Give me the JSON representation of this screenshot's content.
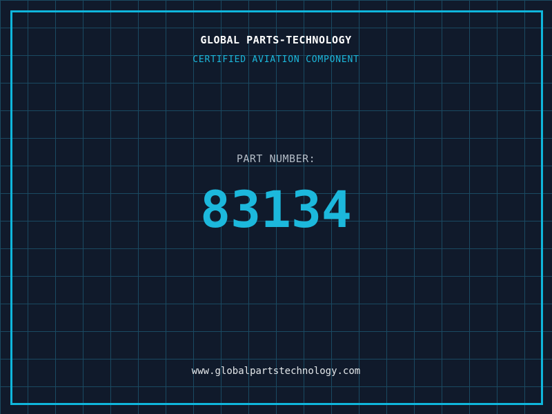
{
  "page": {
    "title": "GLOBAL PARTS-TECHNOLOGY",
    "subtitle": "CERTIFIED AVIATION COMPONENT",
    "part_label": "PART NUMBER:",
    "part_number": "83134",
    "website": "www.globalpartstechnology.com"
  },
  "colors": {
    "background": "#101a2b",
    "grid": "#1a4a62",
    "frame": "#0fb6dc",
    "accent": "#1cb8dc",
    "title": "#ffffff",
    "label": "#b3bcc6",
    "url": "#e3e7ea"
  }
}
